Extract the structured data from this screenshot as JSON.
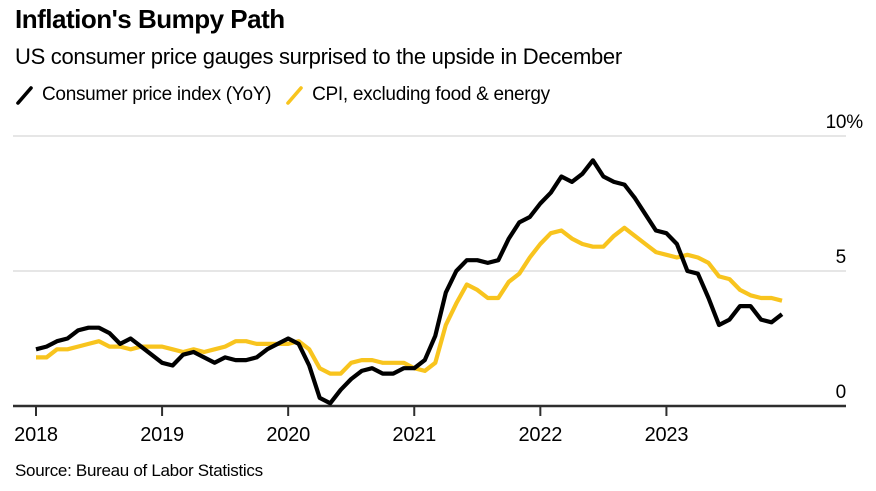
{
  "header": {
    "title": "Inflation's Bumpy Path",
    "subtitle": "US consumer price gauges surprised to the upside in December"
  },
  "legend": [
    {
      "icon": "line-swatch-icon",
      "label": "Consumer price index (YoY)",
      "color": "#000000"
    },
    {
      "icon": "line-swatch-icon",
      "label": "CPI, excluding food & energy",
      "color": "#f8c41e"
    }
  ],
  "footer": {
    "source": "Source: Bureau of Labor Statistics"
  },
  "colors": {
    "headline_line": "#000000",
    "core_line": "#f8c41e",
    "gridline": "#e3e3e3",
    "zero_axis": "#2e2e2e"
  },
  "chart_data": {
    "type": "line",
    "title": "Inflation's Bumpy Path",
    "subtitle": "US consumer price gauges surprised to the upside in December",
    "x_unit": "month",
    "x_start": "2018-01",
    "x_end": "2023-12",
    "x_tick_labels": [
      "2018",
      "2019",
      "2020",
      "2021",
      "2022",
      "2023"
    ],
    "y_ticks": [
      {
        "value": 10,
        "label": "10%"
      },
      {
        "value": 5,
        "label": "5"
      },
      {
        "value": 0,
        "label": "0"
      }
    ],
    "ylim": [
      0,
      10
    ],
    "grid": "horizontal",
    "legend_position": "top",
    "series": [
      {
        "name": "Consumer price index (YoY)",
        "color": "#000000",
        "values": [
          2.1,
          2.2,
          2.4,
          2.5,
          2.8,
          2.9,
          2.9,
          2.7,
          2.3,
          2.5,
          2.2,
          1.9,
          1.6,
          1.5,
          1.9,
          2.0,
          1.8,
          1.6,
          1.8,
          1.7,
          1.7,
          1.8,
          2.1,
          2.3,
          2.5,
          2.3,
          1.5,
          0.3,
          0.1,
          0.6,
          1.0,
          1.3,
          1.4,
          1.2,
          1.2,
          1.4,
          1.4,
          1.7,
          2.6,
          4.2,
          5.0,
          5.4,
          5.4,
          5.3,
          5.4,
          6.2,
          6.8,
          7.0,
          7.5,
          7.9,
          8.5,
          8.3,
          8.6,
          9.1,
          8.5,
          8.3,
          8.2,
          7.7,
          7.1,
          6.5,
          6.4,
          6.0,
          5.0,
          4.9,
          4.0,
          3.0,
          3.2,
          3.7,
          3.7,
          3.2,
          3.1,
          3.4
        ]
      },
      {
        "name": "CPI, excluding food & energy",
        "color": "#f8c41e",
        "values": [
          1.8,
          1.8,
          2.1,
          2.1,
          2.2,
          2.3,
          2.4,
          2.2,
          2.2,
          2.1,
          2.2,
          2.2,
          2.2,
          2.1,
          2.0,
          2.1,
          2.0,
          2.1,
          2.2,
          2.4,
          2.4,
          2.3,
          2.3,
          2.3,
          2.3,
          2.4,
          2.1,
          1.4,
          1.2,
          1.2,
          1.6,
          1.7,
          1.7,
          1.6,
          1.6,
          1.6,
          1.4,
          1.3,
          1.6,
          3.0,
          3.8,
          4.5,
          4.3,
          4.0,
          4.0,
          4.6,
          4.9,
          5.5,
          6.0,
          6.4,
          6.5,
          6.2,
          6.0,
          5.9,
          5.9,
          6.3,
          6.6,
          6.3,
          6.0,
          5.7,
          5.6,
          5.5,
          5.6,
          5.5,
          5.3,
          4.8,
          4.7,
          4.3,
          4.1,
          4.0,
          4.0,
          3.9
        ]
      }
    ]
  }
}
